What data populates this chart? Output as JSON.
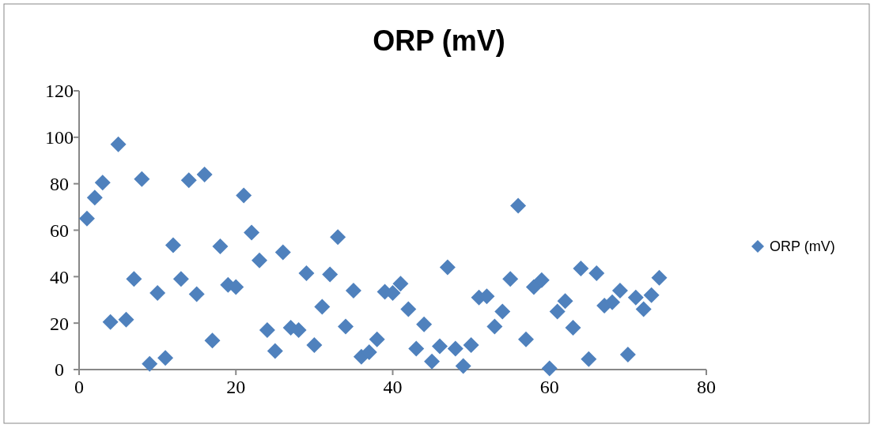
{
  "chart_data": {
    "type": "scatter",
    "title": "ORP (mV)",
    "marker": "diamond",
    "legend": "right",
    "grid": false,
    "xlim": [
      0,
      80
    ],
    "xticks": [
      0,
      20,
      40,
      60,
      80
    ],
    "ylim": [
      0,
      120
    ],
    "yticks": [
      0,
      20,
      40,
      60,
      80,
      100,
      120
    ],
    "series": [
      {
        "name": "ORP (mV)",
        "color": "#4f81bd",
        "x": [
          1,
          2,
          3,
          4,
          5,
          6,
          7,
          8,
          9,
          10,
          11,
          12,
          13,
          14,
          15,
          16,
          17,
          18,
          19,
          20,
          21,
          22,
          23,
          24,
          25,
          26,
          27,
          28,
          29,
          30,
          31,
          32,
          33,
          34,
          35,
          36,
          37,
          38,
          39,
          40,
          41,
          42,
          43,
          44,
          45,
          46,
          47,
          48,
          49,
          50,
          51,
          52,
          53,
          54,
          55,
          56,
          57,
          58,
          59,
          60,
          61,
          62,
          63,
          64,
          65,
          66,
          67,
          68,
          69,
          70,
          71,
          72,
          73,
          74
        ],
        "values": [
          65,
          74,
          80.5,
          20.5,
          97,
          21.5,
          39,
          82,
          2.5,
          33,
          5,
          53.5,
          39,
          81.5,
          32.5,
          84,
          12.5,
          53,
          36.5,
          35.5,
          75,
          59,
          47,
          17,
          8,
          50.5,
          18,
          17,
          41.5,
          10.5,
          27,
          41,
          57,
          18.5,
          34,
          5.5,
          7.5,
          13,
          33.5,
          33,
          37,
          26,
          9,
          19.5,
          3.5,
          10,
          44,
          9,
          1.5,
          10.5,
          31,
          31.5,
          18.5,
          25,
          39,
          70.5,
          13,
          35.5,
          38.5,
          0.5,
          25,
          29.5,
          18,
          43.5,
          4.5,
          41.5,
          27.5,
          29,
          34,
          6.5,
          31,
          26,
          32,
          39.5
        ]
      }
    ]
  }
}
